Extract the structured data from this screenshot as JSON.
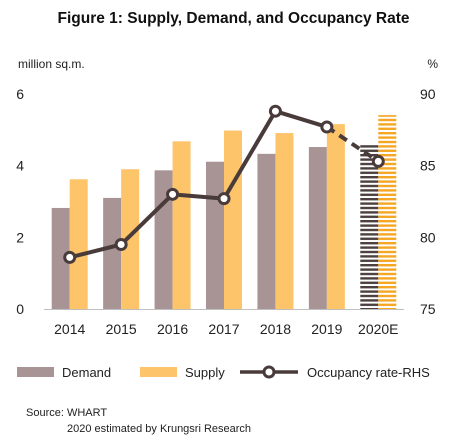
{
  "chart_data": {
    "type": "bar",
    "title": "Figure 1: Supply, Demand, and Occupancy Rate",
    "y_left_unit": "million sq.m.",
    "y_right_unit": "%",
    "categories": [
      "2014",
      "2015",
      "2016",
      "2017",
      "2018",
      "2019",
      "2020E"
    ],
    "ylim_left": [
      0,
      6
    ],
    "yticks_left": [
      "0",
      "2",
      "4",
      "6"
    ],
    "ylim_right": [
      75,
      90
    ],
    "yticks_right": [
      "75",
      "80",
      "85",
      "90"
    ],
    "series": [
      {
        "name": "Demand",
        "type": "bar",
        "axis": "left",
        "color": "#a89494",
        "values": [
          2.82,
          3.1,
          3.87,
          4.11,
          4.33,
          4.52,
          4.61
        ]
      },
      {
        "name": "Supply",
        "type": "bar",
        "axis": "left",
        "color": "#fdc46a",
        "values": [
          3.62,
          3.9,
          4.68,
          4.98,
          4.91,
          5.16,
          5.41
        ]
      },
      {
        "name": "Occupancy rate-RHS",
        "type": "line",
        "axis": "right",
        "color": "#4a3b3b",
        "values": [
          78.6,
          79.5,
          83.0,
          82.7,
          88.8,
          87.7,
          85.3
        ]
      }
    ],
    "estimated_category": "2020E",
    "grid": false,
    "legend_position": "bottom"
  },
  "source": {
    "line1": "Source: WHART",
    "line2": "2020 estimated by Krungsri Research"
  }
}
